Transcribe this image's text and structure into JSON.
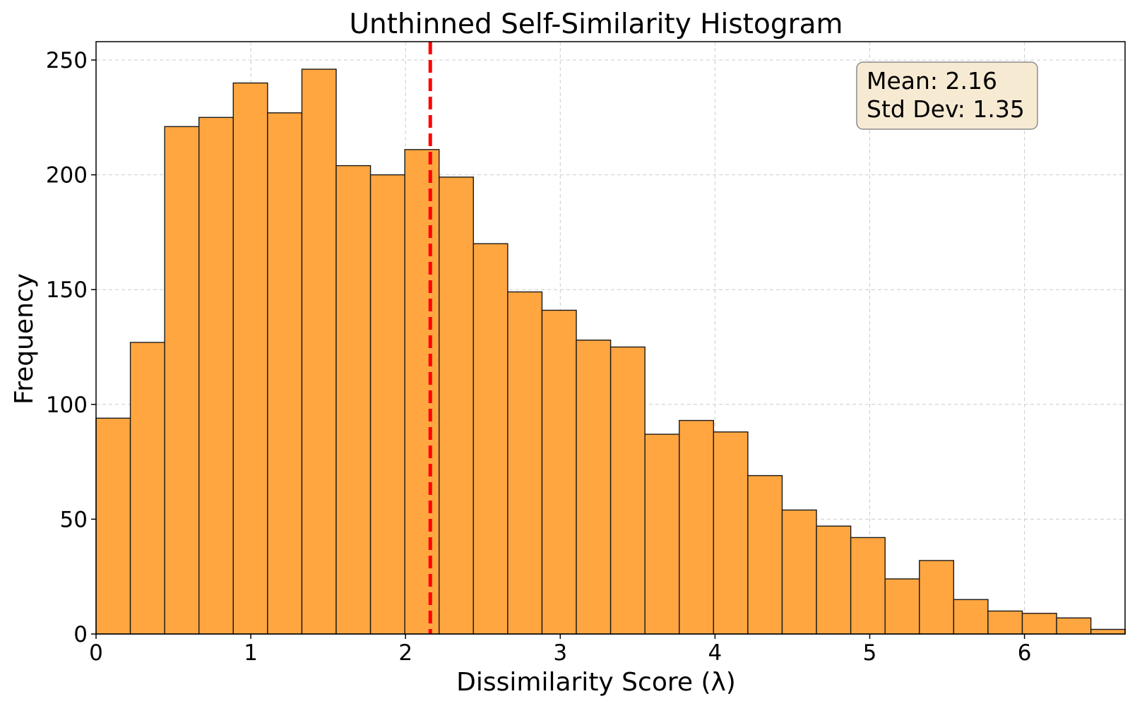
{
  "chart_data": {
    "type": "bar",
    "title": "Unthinned Self-Similarity Histogram",
    "xlabel": "Dissimilarity Score (λ)",
    "ylabel": "Frequency",
    "xlim": [
      0,
      6.65
    ],
    "ylim": [
      0,
      258
    ],
    "xticks": [
      0,
      1,
      2,
      3,
      4,
      5,
      6
    ],
    "yticks": [
      0,
      50,
      100,
      150,
      200,
      250
    ],
    "grid": true,
    "bin_width": 0.2217,
    "bins_start": 0,
    "values": [
      94,
      127,
      221,
      225,
      240,
      227,
      246,
      204,
      200,
      211,
      199,
      170,
      149,
      141,
      128,
      125,
      87,
      93,
      88,
      69,
      54,
      47,
      42,
      24,
      32,
      15,
      10,
      9,
      7,
      2
    ],
    "mean_line": {
      "value": 2.16,
      "color": "#ff0000",
      "style": "dashed"
    },
    "stats_box": {
      "mean_text": "Mean: 2.16",
      "std_text": "Std Dev: 1.35"
    },
    "colors": {
      "bar_fill": "#ffa640",
      "bar_edge": "#1a1a1a",
      "grid": "#cccccc",
      "box_fill": "#f7ead3",
      "box_edge": "#8c8c8c"
    }
  }
}
